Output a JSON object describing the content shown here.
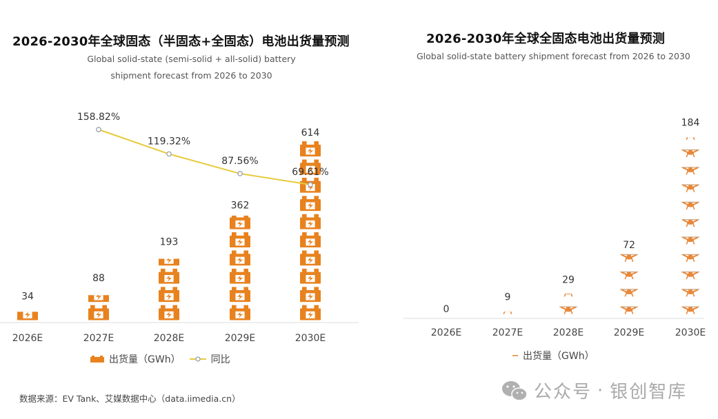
{
  "chart_data": [
    {
      "type": "bar",
      "subtype": "pictorial-bar-with-line",
      "title": "2026-2030年全球固态（半固态+全固态）电池出货量预测",
      "subtitle_lines": [
        "Global solid-state (semi-solid + all-solid) battery",
        "shipment forecast from 2026 to 2030"
      ],
      "categories": [
        "2026E",
        "2027E",
        "2028E",
        "2029E",
        "2030E"
      ],
      "series": [
        {
          "name": "出货量（GWh）",
          "kind": "bar",
          "values": [
            34,
            88,
            193,
            362,
            614
          ],
          "labels": [
            "34",
            "88",
            "193",
            "362",
            "614"
          ],
          "icon": "battery-icon"
        },
        {
          "name": "同比",
          "kind": "line",
          "values": [
            null,
            158.82,
            119.32,
            87.56,
            69.61
          ],
          "labels": [
            "",
            "158.82%",
            "119.32%",
            "87.56%",
            "69.61%"
          ]
        }
      ],
      "legend": [
        "出货量（GWh）",
        "同比"
      ],
      "legend_position": "bottom",
      "grid": false,
      "source": "数据来源：EV Tank、艾媒数据中心（data.iimedia.cn）"
    },
    {
      "type": "bar",
      "subtype": "pictorial-bar",
      "title": "2026-2030年全球全固态电池出货量预测",
      "subtitle_lines": [
        "Global solid-state battery shipment forecast from 2026 to 2030"
      ],
      "categories": [
        "2026E",
        "2027E",
        "2028E",
        "2029E",
        "2030E"
      ],
      "series": [
        {
          "name": "出货量（GWh）",
          "kind": "bar",
          "values": [
            0,
            9,
            29,
            72,
            184
          ],
          "labels": [
            "0",
            "9",
            "29",
            "72",
            "184"
          ],
          "icon": "drone-icon"
        }
      ],
      "legend": [
        "出货量（GWh）"
      ],
      "legend_position": "bottom",
      "grid": false
    }
  ],
  "colors": {
    "bar": "#E8821E",
    "line": "#E6CB3A",
    "marker": "#9aa0aa"
  },
  "watermark": {
    "prefix": "公众号",
    "dot": "·",
    "name": "银创智库"
  }
}
